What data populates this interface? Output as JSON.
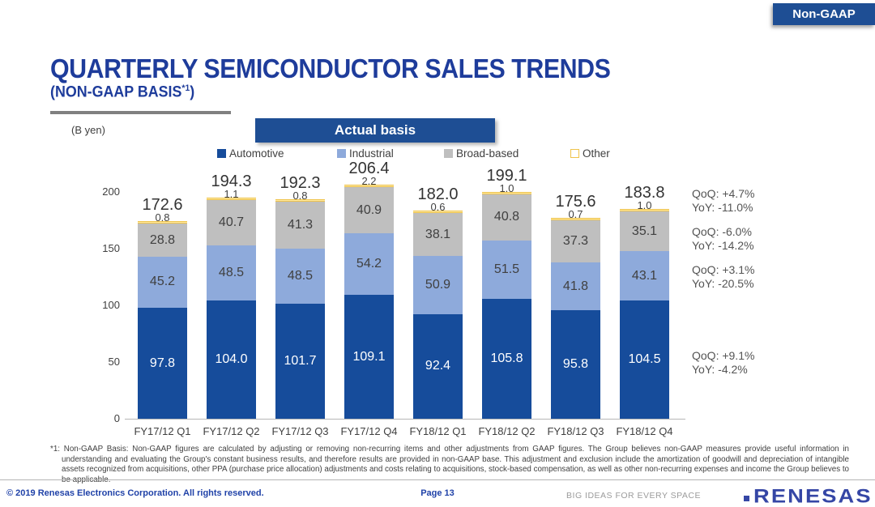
{
  "badge": {
    "label": "Non-GAAP"
  },
  "header": {
    "title": "QUARTERLY SEMICONDUCTOR SALES TRENDS",
    "subtitle_prefix": "(NON-GAAP BASIS",
    "subtitle_sup": "*1",
    "subtitle_suffix": ")"
  },
  "chart_header": {
    "unit_label": "(B yen)",
    "banner_label": "Actual basis"
  },
  "chart_data": {
    "type": "bar",
    "stacked": true,
    "title": "Actual basis",
    "ylabel": "(B yen)",
    "categories": [
      "FY17/12 Q1",
      "FY17/12 Q2",
      "FY17/12 Q3",
      "FY17/12 Q4",
      "FY18/12 Q1",
      "FY18/12 Q2",
      "FY18/12 Q3",
      "FY18/12 Q4"
    ],
    "series": [
      {
        "name": "Automotive",
        "color": "#164c9b",
        "label_color": "#ffffff",
        "values": [
          97.8,
          104.0,
          101.7,
          109.1,
          92.4,
          105.8,
          95.8,
          104.5
        ]
      },
      {
        "name": "Industrial",
        "color": "#8eaadb",
        "label_color": "#404040",
        "values": [
          45.2,
          48.5,
          48.5,
          54.2,
          50.9,
          51.5,
          41.8,
          43.1
        ]
      },
      {
        "name": "Broad-based",
        "color": "#bfbfbf",
        "label_color": "#404040",
        "values": [
          28.8,
          40.7,
          41.3,
          40.9,
          38.1,
          40.8,
          37.3,
          35.1
        ]
      },
      {
        "name": "Other",
        "color": "#fdeaa6",
        "border": "#efc34b",
        "label_color": "#404040",
        "label_outside": true,
        "values": [
          0.8,
          1.1,
          0.8,
          2.2,
          0.6,
          1.0,
          0.7,
          1.0
        ]
      }
    ],
    "totals": [
      172.6,
      194.3,
      192.3,
      206.4,
      182.0,
      199.1,
      175.6,
      183.8
    ],
    "y_ticks": [
      0,
      50,
      100,
      150,
      200
    ],
    "ylim": [
      0,
      220
    ],
    "grid": false,
    "legend_position": "top"
  },
  "annotations": [
    {
      "lines": [
        "QoQ: +4.7%",
        "YoY: -11.0%"
      ]
    },
    {
      "lines": [
        "QoQ: -6.0%",
        "YoY: -14.2%"
      ]
    },
    {
      "lines": [
        "QoQ: +3.1%",
        "YoY: -20.5%"
      ]
    },
    {
      "lines": [
        "QoQ: +9.1%",
        "YoY: -4.2%"
      ]
    }
  ],
  "footnote": "*1: Non-GAAP Basis: Non-GAAP figures are calculated by adjusting or removing non-recurring items and other adjustments from GAAP figures. The Group believes non-GAAP measures provide useful information in understanding and evaluating the Group's constant business results, and therefore results are provided in non-GAAP base. This adjustment and exclusion include the amortization of goodwill and depreciation of intangible assets recognized from acquisitions, other PPA (purchase price allocation) adjustments and costs relating to acquisitions, stock-based compensation, as well as other non-recurring expenses and income the Group believes to be applicable.",
  "footer": {
    "copyright": "© 2019 Renesas Electronics Corporation. All rights reserved.",
    "page": "Page 13",
    "tagline": "BIG IDEAS FOR EVERY SPACE",
    "logo": "RENESAS"
  }
}
